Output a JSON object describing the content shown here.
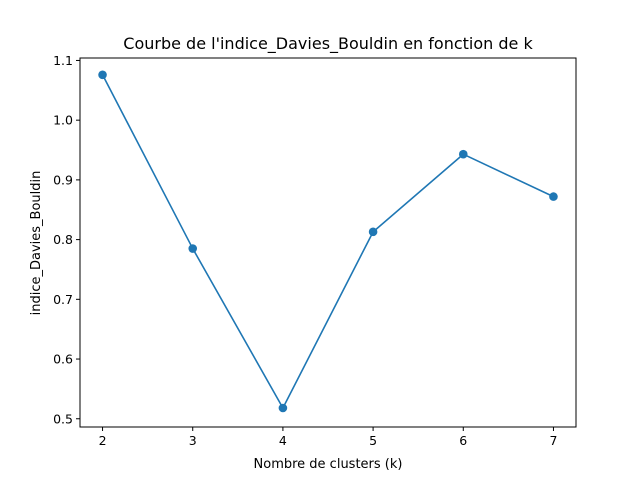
{
  "chart_data": {
    "type": "line",
    "title": "Courbe de l'indice_Davies_Bouldin en fonction de k",
    "xlabel": "Nombre de clusters (k)",
    "ylabel": "indice_Davies_Bouldin",
    "x": [
      2,
      3,
      4,
      5,
      6,
      7
    ],
    "series": [
      {
        "values": [
          1.076,
          0.785,
          0.518,
          0.813,
          0.943,
          0.872
        ]
      }
    ],
    "xlim": [
      1.75,
      7.25
    ],
    "ylim": [
      0.4862,
      1.1041
    ],
    "x_ticks": [
      "2",
      "3",
      "4",
      "5",
      "6",
      "7"
    ],
    "y_ticks": [
      "0.5",
      "0.6",
      "0.7",
      "0.8",
      "0.9",
      "1.0",
      "1.1"
    ],
    "grid": false,
    "color": "#1f77b4",
    "marker": "circle"
  }
}
